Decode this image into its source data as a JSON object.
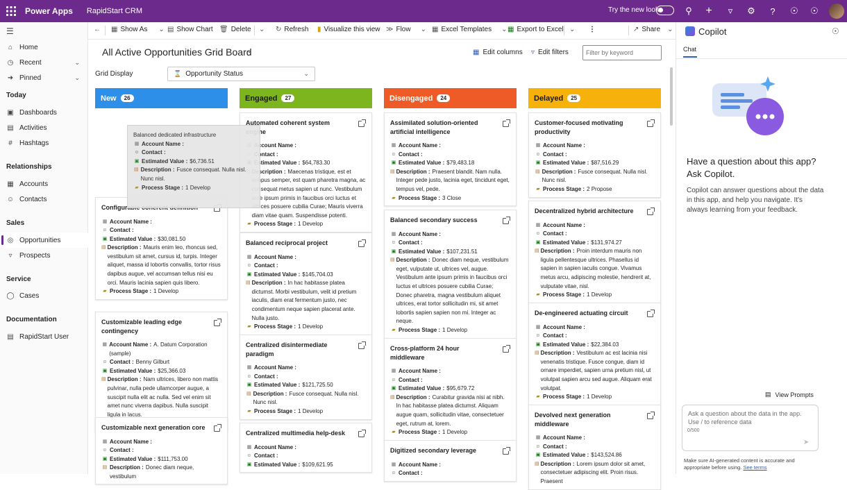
{
  "topbar": {
    "brand": "Power Apps",
    "app": "RapidStart CRM",
    "try_new": "Try the new look"
  },
  "nav": {
    "home": "Home",
    "recent": "Recent",
    "pinned": "Pinned",
    "today_hdr": "Today",
    "dashboards": "Dashboards",
    "activities": "Activities",
    "hashtags": "Hashtags",
    "relationships_hdr": "Relationships",
    "accounts": "Accounts",
    "contacts": "Contacts",
    "sales_hdr": "Sales",
    "opportunities": "Opportunities",
    "prospects": "Prospects",
    "service_hdr": "Service",
    "cases": "Cases",
    "documentation_hdr": "Documentation",
    "rapidstart_user": "RapidStart User"
  },
  "cmd": {
    "show_as": "Show As",
    "show_chart": "Show Chart",
    "delete": "Delete",
    "refresh": "Refresh",
    "visualize": "Visualize this view",
    "flow": "Flow",
    "excel_templates": "Excel Templates",
    "export_excel": "Export to Excel",
    "share": "Share"
  },
  "main": {
    "title": "All Active Opportunities Grid Board",
    "edit_columns": "Edit columns",
    "edit_filters": "Edit filters",
    "filter_placeholder": "Filter by keyword",
    "grid_display_label": "Grid Display",
    "grid_display_value": "Opportunity Status"
  },
  "labels": {
    "account": "Account Name :",
    "contact": "Contact :",
    "estval": "Estimated Value :",
    "desc": "Description :",
    "stage": "Process Stage :"
  },
  "columns": [
    {
      "name": "New",
      "count": "26",
      "color": "#2d8fe8",
      "text": "#ffffff"
    },
    {
      "name": "Engaged",
      "count": "27",
      "color": "#7cb51e",
      "text": "#1a1a1a"
    },
    {
      "name": "Disengaged",
      "count": "24",
      "color": "#ef5b27",
      "text": "#ffffff"
    },
    {
      "name": "Delayed",
      "count": "25",
      "color": "#f6b10a",
      "text": "#1a1a1a"
    }
  ],
  "dragcard": {
    "title": "Balanced dedicated infrastructure",
    "account": "",
    "contact": "",
    "value": "$6,736.51",
    "desc": "Fusce consequat. Nulla nisl. Nunc nisl.",
    "stage": "1 Develop"
  },
  "cards": [
    {
      "title": "Configurable coherent definition",
      "account": "",
      "contact": "",
      "value": "$30,081.50",
      "desc": "Mauris enim leo, rhoncus sed, vestibulum sit amet, cursus id, turpis. Integer aliquet, massa id lobortis convallis, tortor risus dapibus augue, vel accumsan tellus nisi eu orci. Mauris lacinia sapien quis libero.",
      "stage": "1 Develop"
    },
    {
      "title": "Customizable leading edge contingency",
      "account": "A. Datum Corporation (sample)",
      "contact": "Benny Gilburt",
      "value": "$25,366.03",
      "desc": "Nam ultrices, libero non mattis pulvinar, nulla pede ullamcorper augue, a suscipit nulla elit ac nulla. Sed vel enim sit amet nunc viverra dapibus. Nulla suscipit ligula in lacus.",
      "stage": "2 Propose"
    },
    {
      "title": "Customizable next generation core",
      "account": "",
      "contact": "",
      "value": "$111,753.00",
      "desc": "Donec diam neque, vestibulum",
      "stage": ""
    },
    {
      "title": "Automated coherent system engine",
      "account": "",
      "contact": "",
      "value": "$64,783.30",
      "desc": "Maecenas tristique, est et tempus semper, est quam pharetra magna, ac consequat metus sapien ut nunc. Vestibulum ante ipsum primis in faucibus orci luctus et ultrices posuere cubilia Curae; Mauris viverra diam vitae quam. Suspendisse potenti.",
      "stage": "1 Develop"
    },
    {
      "title": "Balanced reciprocal project",
      "account": "",
      "contact": "",
      "value": "$145,704.03",
      "desc": "In hac habitasse platea dictumst. Morbi vestibulum, velit id pretium iaculis, diam erat fermentum justo, nec condimentum neque sapien placerat ante. Nulla justo.",
      "stage": "1 Develop"
    },
    {
      "title": "Centralized disintermediate paradigm",
      "account": "",
      "contact": "",
      "value": "$121,725.50",
      "desc": "Fusce consequat. Nulla nisl. Nunc nisl.",
      "stage": "1 Develop"
    },
    {
      "title": "Centralized multimedia help-desk",
      "account": "",
      "contact": "",
      "value": "$109,621.95",
      "desc": "",
      "stage": ""
    },
    {
      "title": "Assimilated solution-oriented artificial intelligence",
      "account": "",
      "contact": "",
      "value": "$79,483.18",
      "desc": "Praesent blandit. Nam nulla. Integer pede justo, lacinia eget, tincidunt eget, tempus vel, pede.",
      "stage": "3 Close"
    },
    {
      "title": "Balanced secondary success",
      "account": "",
      "contact": "",
      "value": "$107,231.51",
      "desc": "Donec diam neque, vestibulum eget, vulputate ut, ultrices vel, augue. Vestibulum ante ipsum primis in faucibus orci luctus et ultrices posuere cubilia Curae; Donec pharetra, magna vestibulum aliquet ultrices, erat tortor sollicitudin mi, sit amet lobortis sapien sapien non mi. Integer ac neque.",
      "stage": "1 Develop"
    },
    {
      "title": "Cross-platform 24 hour middleware",
      "account": "",
      "contact": "",
      "value": "$95,679.72",
      "desc": "Curabitur gravida nisi at nibh. In hac habitasse platea dictumst. Aliquam augue quam, sollicitudin vitae, consectetuer eget, rutrum at, lorem.",
      "stage": "1 Develop"
    },
    {
      "title": "Digitized secondary leverage",
      "account": "",
      "contact": "",
      "value": "",
      "desc": "",
      "stage": ""
    },
    {
      "title": "Customer-focused motivating productivity",
      "account": "",
      "contact": "",
      "value": "$87,516.29",
      "desc": "Fusce consequat. Nulla nisl. Nunc nisl.",
      "stage": "2 Propose"
    },
    {
      "title": "Decentralized hybrid architecture",
      "account": "",
      "contact": "",
      "value": "$131,974.27",
      "desc": "Proin interdum mauris non ligula pellentesque ultrices. Phasellus id sapien in sapien iaculis congue. Vivamus metus arcu, adipiscing molestie, hendrerit at, vulputate vitae, nisl.",
      "stage": "1 Develop"
    },
    {
      "title": "De-engineered actuating circuit",
      "account": "",
      "contact": "",
      "value": "$22,384.03",
      "desc": "Vestibulum ac est lacinia nisi venenatis tristique. Fusce congue, diam id ornare imperdiet, sapien urna pretium nisl, ut volutpat sapien arcu sed augue. Aliquam erat volutpat.",
      "stage": "1 Develop"
    },
    {
      "title": "Devolved next generation middleware",
      "account": "",
      "contact": "",
      "value": "$143,524.86",
      "desc": "Lorem ipsum dolor sit amet, consectetuer adipiscing elit. Proin risus. Praesent",
      "stage": ""
    }
  ],
  "copilot": {
    "title": "Copilot",
    "chat_tab": "Chat",
    "question": "Have a question about this app? Ask Copilot.",
    "description": "Copilot can answer questions about the data in this app, and help you navigate. It's always learning from your feedback.",
    "view_prompts": "View Prompts",
    "ask_placeholder": "Ask a question about the data in the app. Use / to reference data",
    "counter": "0/500",
    "disclaimer": "Make sure AI-generated content is accurate and appropriate before using.",
    "see_terms": "See terms"
  }
}
